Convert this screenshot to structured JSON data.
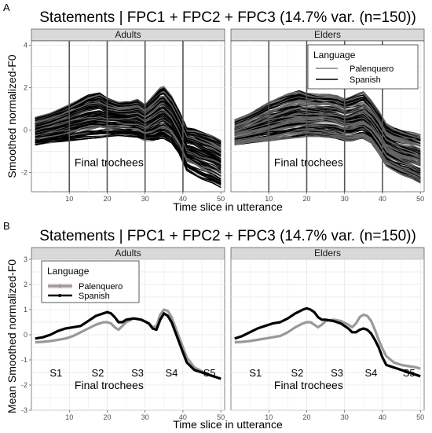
{
  "chart_data": [
    {
      "panel_letter": "A",
      "type": "line",
      "title": "Statements | FPC1 + FPC2 + FPC3 (14.7% var. (n=150))",
      "xlabel": "Time slice in utterance",
      "ylabel": "Smoothed normalized-F0",
      "facets": [
        "Adults",
        "Elders"
      ],
      "xlim": [
        0,
        51
      ],
      "ylim": [
        -2.9,
        4.2
      ],
      "x_ticks": [
        10,
        20,
        30,
        40,
        50
      ],
      "y_ticks": [
        -2,
        0,
        2,
        4
      ],
      "grid": true,
      "vlines": [
        10,
        20,
        30,
        40
      ],
      "annotation": "Final trochees",
      "legend": {
        "title": "Language",
        "placement": "top-right of Elders facet",
        "entries": [
          "Palenquero",
          "Spanish"
        ]
      },
      "series_colors": {
        "Palenquero": "#666666",
        "Spanish": "#000000"
      },
      "n_curves_per_facet": 150,
      "envelope_x": [
        1,
        5,
        10,
        15,
        18,
        20,
        23,
        26,
        28,
        30,
        32,
        34,
        35,
        37,
        39,
        41,
        43,
        45,
        48,
        50
      ],
      "envelope_upper": {
        "Adults": [
          0.6,
          0.8,
          1.2,
          1.65,
          1.75,
          1.5,
          1.3,
          1.35,
          1.45,
          1.2,
          1.6,
          2.0,
          2.05,
          1.6,
          0.9,
          0.1,
          0.05,
          -0.1,
          -0.3,
          -0.5
        ],
        "Elders": [
          0.5,
          0.8,
          1.3,
          1.7,
          1.85,
          1.75,
          1.7,
          1.7,
          1.65,
          1.5,
          1.6,
          1.75,
          1.8,
          1.4,
          0.9,
          0.3,
          0.1,
          0.0,
          -0.1,
          -0.2
        ]
      },
      "envelope_lower": {
        "Adults": [
          -0.7,
          -0.6,
          -0.5,
          -0.4,
          -0.35,
          -0.3,
          -0.25,
          -0.3,
          -0.35,
          -0.5,
          -0.5,
          -0.4,
          -0.4,
          -0.6,
          -1.1,
          -1.9,
          -2.1,
          -2.3,
          -2.5,
          -2.7
        ],
        "Elders": [
          -0.7,
          -0.6,
          -0.5,
          -0.4,
          -0.35,
          -0.3,
          -0.3,
          -0.35,
          -0.4,
          -0.5,
          -0.5,
          -0.4,
          -0.4,
          -0.6,
          -1.1,
          -1.7,
          -1.9,
          -2.1,
          -2.3,
          -2.5
        ]
      }
    },
    {
      "panel_letter": "B",
      "type": "line",
      "title": "Statements | FPC1 + FPC2 + FPC3 (14.7% var. (n=150))",
      "xlabel": "Time slice in utterance",
      "ylabel": "Mean Smoothed normalized-F0",
      "facets": [
        "Adults",
        "Elders"
      ],
      "xlim": [
        0,
        51
      ],
      "ylim": [
        -3,
        3
      ],
      "x_ticks": [
        10,
        20,
        30,
        40,
        50
      ],
      "y_ticks": [
        -3,
        -2,
        -1,
        0,
        1,
        2,
        3
      ],
      "grid": true,
      "annotation": "Final trochees",
      "syllables": [
        {
          "label": "S1",
          "x": 6.5
        },
        {
          "label": "S2",
          "x": 17.5
        },
        {
          "label": "S3",
          "x": 28
        },
        {
          "label": "S4",
          "x": 37
        },
        {
          "label": "S5",
          "x": 47
        }
      ],
      "legend": {
        "title": "Language",
        "placement": "top-left of Adults facet",
        "entries": [
          "Palenquero",
          "Spanish"
        ]
      },
      "x": [
        1,
        3,
        5,
        7,
        9,
        11,
        13,
        15,
        17,
        19,
        20,
        21,
        22,
        23,
        24,
        25,
        27,
        29,
        31,
        32,
        33,
        34,
        35,
        36,
        37,
        38,
        39,
        40,
        41,
        43,
        45,
        47,
        49,
        50
      ],
      "series": [
        {
          "name": "Palenquero",
          "color": "#999999",
          "facet": "Adults",
          "values": [
            -0.3,
            -0.28,
            -0.25,
            -0.2,
            -0.15,
            -0.05,
            0.1,
            0.25,
            0.4,
            0.5,
            0.5,
            0.45,
            0.3,
            0.2,
            0.35,
            0.5,
            0.65,
            0.6,
            0.45,
            0.3,
            0.35,
            0.8,
            1.0,
            0.95,
            0.7,
            0.3,
            -0.1,
            -0.5,
            -0.9,
            -1.3,
            -1.45,
            -1.6,
            -1.7,
            -1.75
          ]
        },
        {
          "name": "Spanish",
          "color": "#000000",
          "facet": "Adults",
          "values": [
            -0.15,
            -0.1,
            0.0,
            0.15,
            0.25,
            0.3,
            0.35,
            0.55,
            0.75,
            0.85,
            0.9,
            0.85,
            0.7,
            0.5,
            0.5,
            0.6,
            0.65,
            0.6,
            0.45,
            0.25,
            0.2,
            0.6,
            0.85,
            0.75,
            0.5,
            0.1,
            -0.3,
            -0.7,
            -1.1,
            -1.4,
            -1.5,
            -1.6,
            -1.7,
            -1.75
          ]
        },
        {
          "name": "Palenquero",
          "color": "#999999",
          "facet": "Elders",
          "values": [
            -0.3,
            -0.28,
            -0.25,
            -0.2,
            -0.15,
            -0.1,
            -0.05,
            0.1,
            0.3,
            0.45,
            0.5,
            0.5,
            0.4,
            0.3,
            0.4,
            0.55,
            0.6,
            0.55,
            0.4,
            0.3,
            0.45,
            0.7,
            0.8,
            0.75,
            0.55,
            0.2,
            -0.2,
            -0.55,
            -0.85,
            -1.1,
            -1.2,
            -1.25,
            -1.3,
            -1.35
          ]
        },
        {
          "name": "Spanish",
          "color": "#000000",
          "facet": "Elders",
          "values": [
            -0.15,
            -0.05,
            0.1,
            0.25,
            0.35,
            0.45,
            0.5,
            0.65,
            0.85,
            1.0,
            1.05,
            1.0,
            0.9,
            0.7,
            0.6,
            0.6,
            0.55,
            0.45,
            0.25,
            0.1,
            0.1,
            0.2,
            0.25,
            0.2,
            0.05,
            -0.2,
            -0.5,
            -0.9,
            -1.2,
            -1.3,
            -1.4,
            -1.5,
            -1.6,
            -1.65
          ]
        }
      ]
    }
  ]
}
